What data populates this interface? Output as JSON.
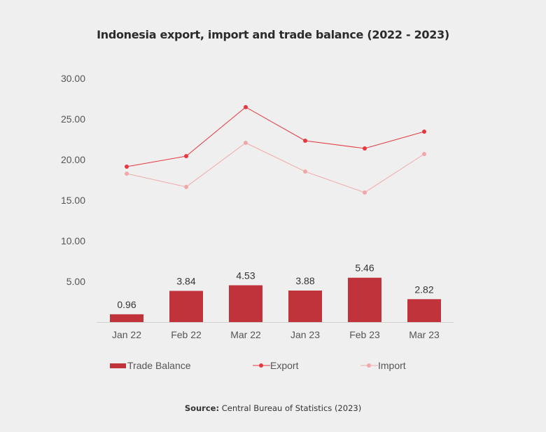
{
  "chart_data": {
    "type": "bar+line",
    "title": "Indonesia export, import and trade balance (2022 - 2023)",
    "categories": [
      "Jan 22",
      "Feb 22",
      "Mar 22",
      "Jan 23",
      "Feb 23",
      "Mar 23"
    ],
    "ylim": [
      0,
      30
    ],
    "yticks": [
      "5.00",
      "10.00",
      "15.00",
      "20.00",
      "25.00",
      "30.00"
    ],
    "series": [
      {
        "name": "Trade Balance",
        "type": "bar",
        "color": "#c0333a",
        "values": [
          0.96,
          3.84,
          4.53,
          3.88,
          5.46,
          2.82
        ],
        "labels": [
          "0.96",
          "3.84",
          "4.53",
          "3.88",
          "5.46",
          "2.82"
        ]
      },
      {
        "name": "Export",
        "type": "line",
        "color": "#e5383f",
        "values": [
          19.14,
          20.43,
          26.47,
          22.33,
          21.38,
          23.45
        ]
      },
      {
        "name": "Import",
        "type": "line",
        "color": "#f0a8a8",
        "values": [
          18.28,
          16.64,
          22.07,
          18.53,
          15.95,
          20.69
        ]
      }
    ],
    "legend_position": "bottom",
    "grid": false
  },
  "source": {
    "label": "Source:",
    "text": " Central Bureau of Statistics (2023)"
  }
}
